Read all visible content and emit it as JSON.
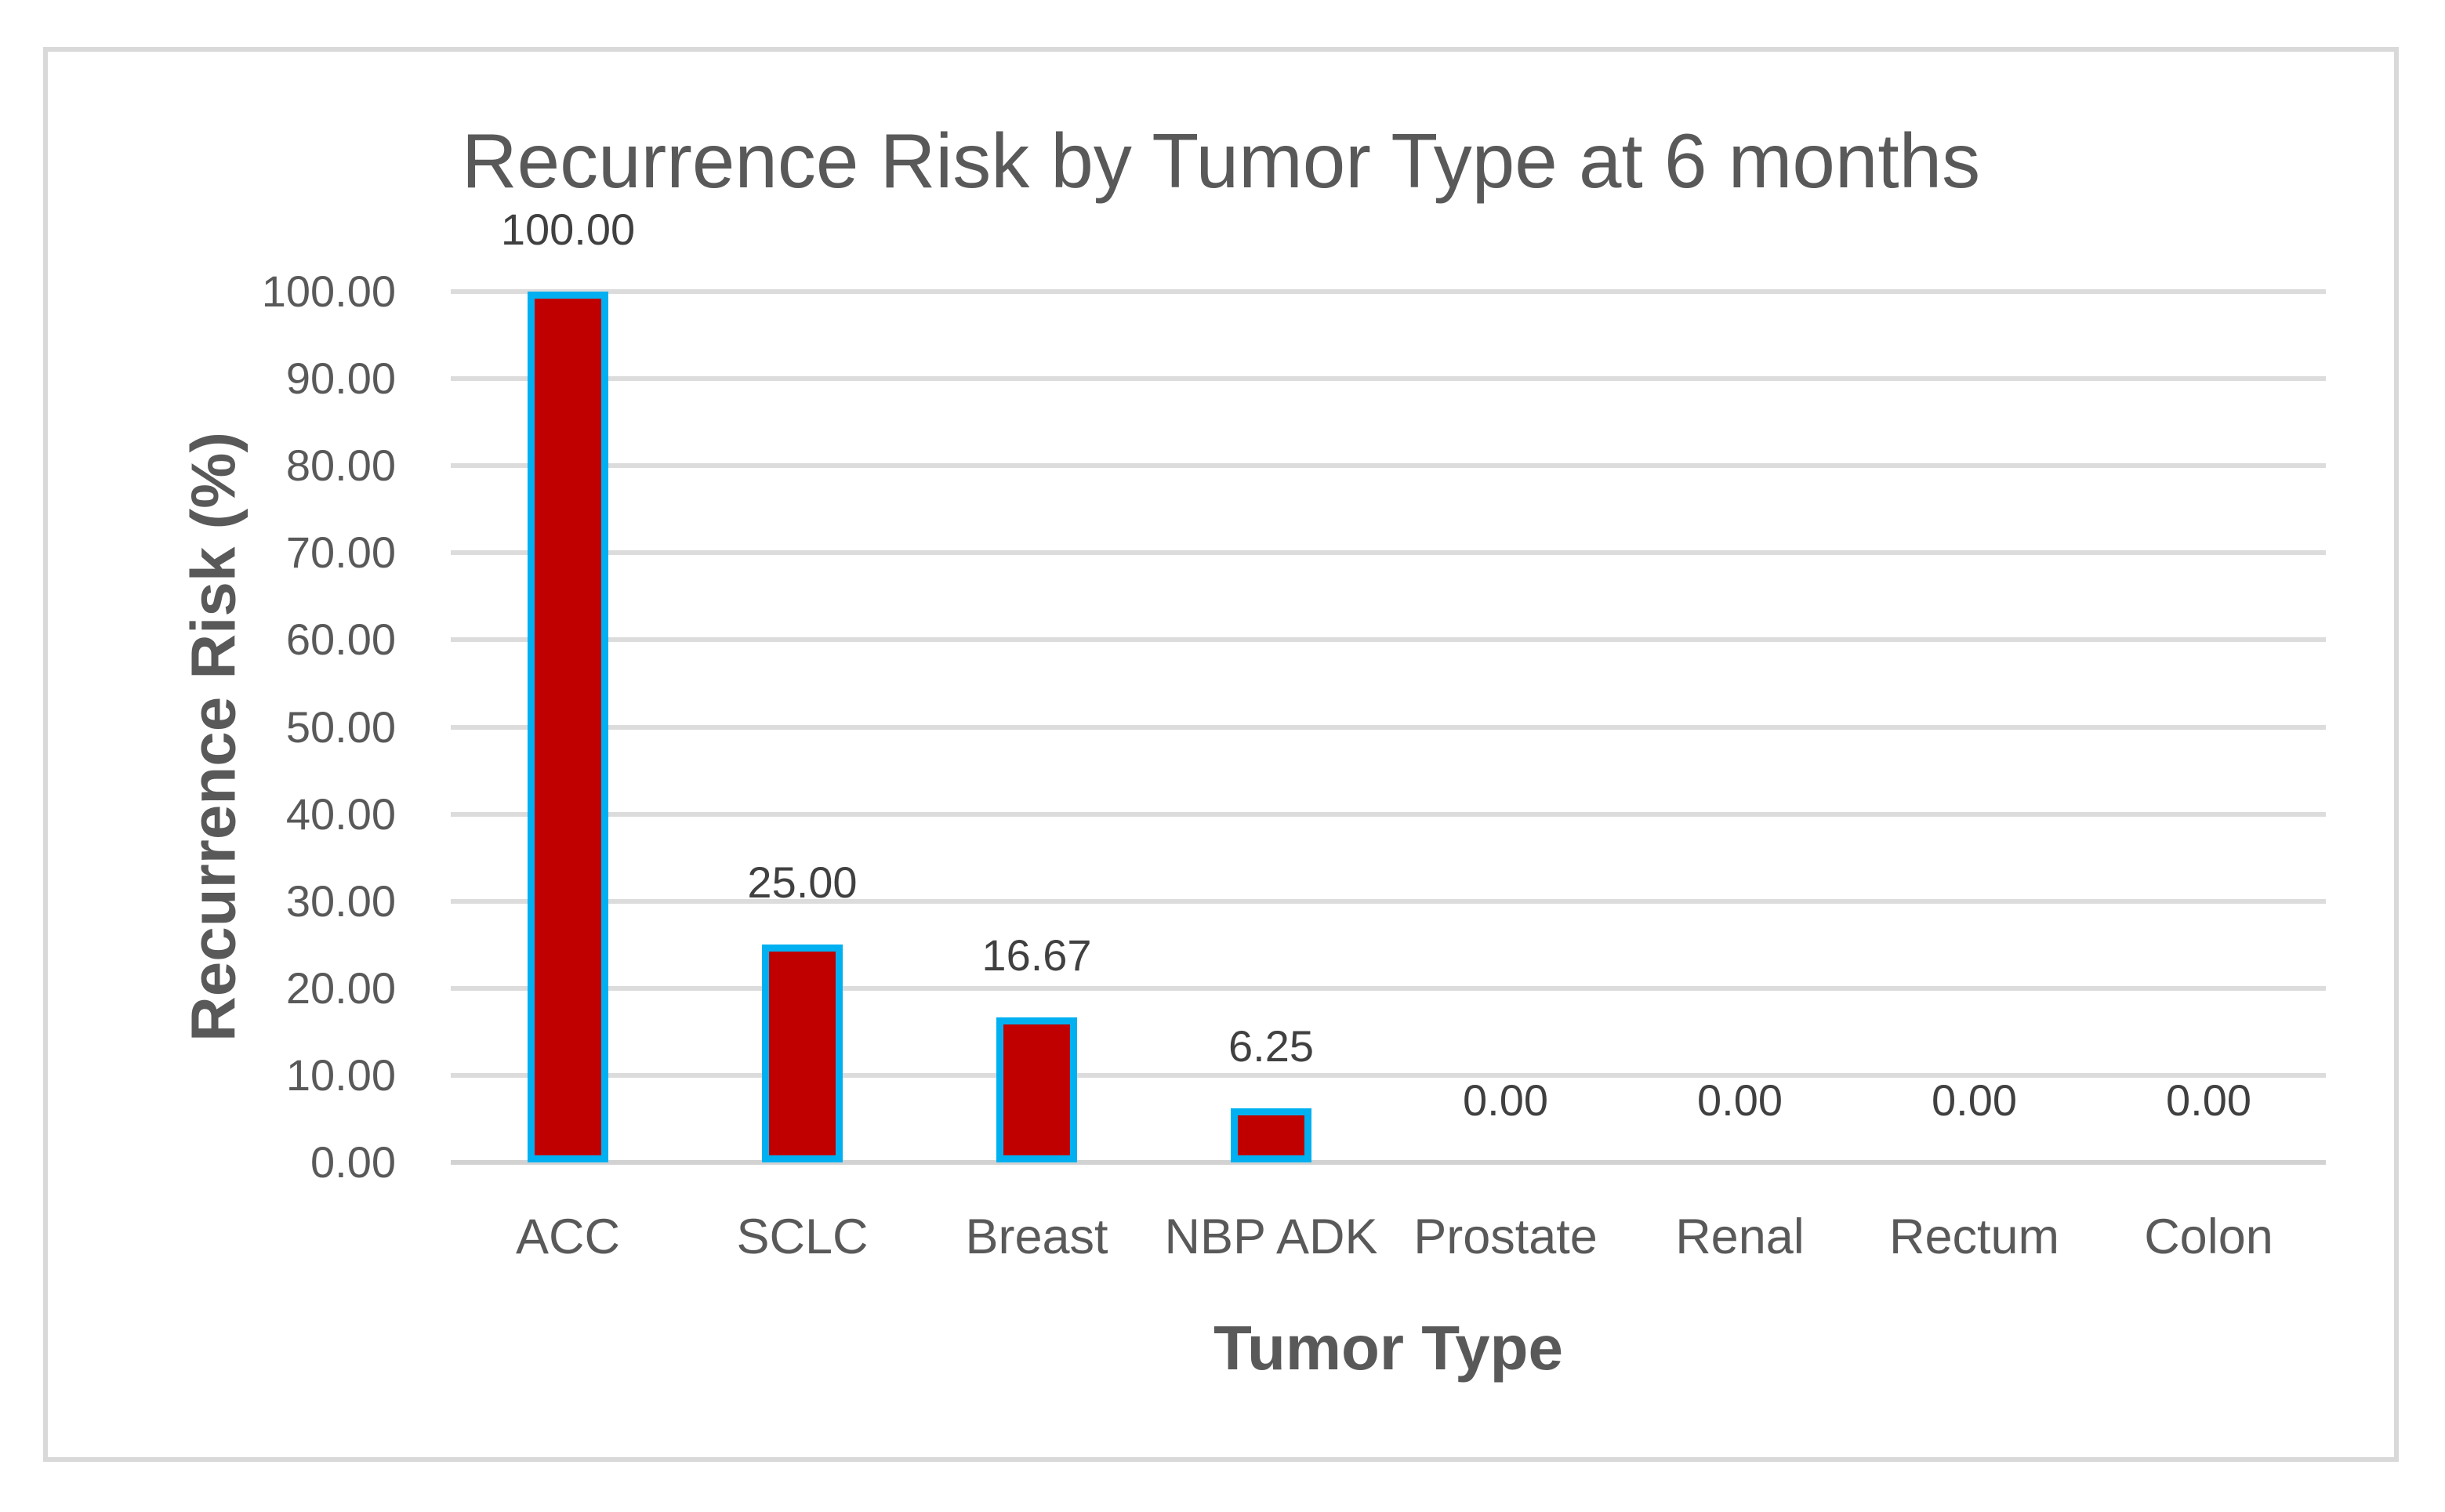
{
  "chart_data": {
    "type": "bar",
    "title": "Recurrence Risk by Tumor Type at 6 months",
    "xlabel": "Tumor Type",
    "ylabel": "Recurrence Risk (%)",
    "categories": [
      "ACC",
      "SCLC",
      "Breast",
      "NBP ADK",
      "Prostate",
      "Renal",
      "Rectum",
      "Colon"
    ],
    "values": [
      100.0,
      25.0,
      16.67,
      6.25,
      0.0,
      0.0,
      0.0,
      0.0
    ],
    "data_labels": [
      "100.00",
      "25.00",
      "16.67",
      "6.25",
      "0.00",
      "0.00",
      "0.00",
      "0.00"
    ],
    "y_ticks": [
      "0.00",
      "10.00",
      "20.00",
      "30.00",
      "40.00",
      "50.00",
      "60.00",
      "70.00",
      "80.00",
      "90.00",
      "100.00"
    ],
    "y_tick_step": 10,
    "ylim": [
      0,
      100
    ],
    "grid": true,
    "legend": "none",
    "colors": {
      "bar_fill": "#C00000",
      "bar_border": "#00B0F0",
      "gridline": "#DCDCDC",
      "axis_line": "#D2D2D2",
      "frame_border": "#D9D9D9",
      "title_text": "#595959",
      "axis_text": "#595959",
      "data_label_text": "#404040",
      "background": "#FFFFFF"
    }
  }
}
